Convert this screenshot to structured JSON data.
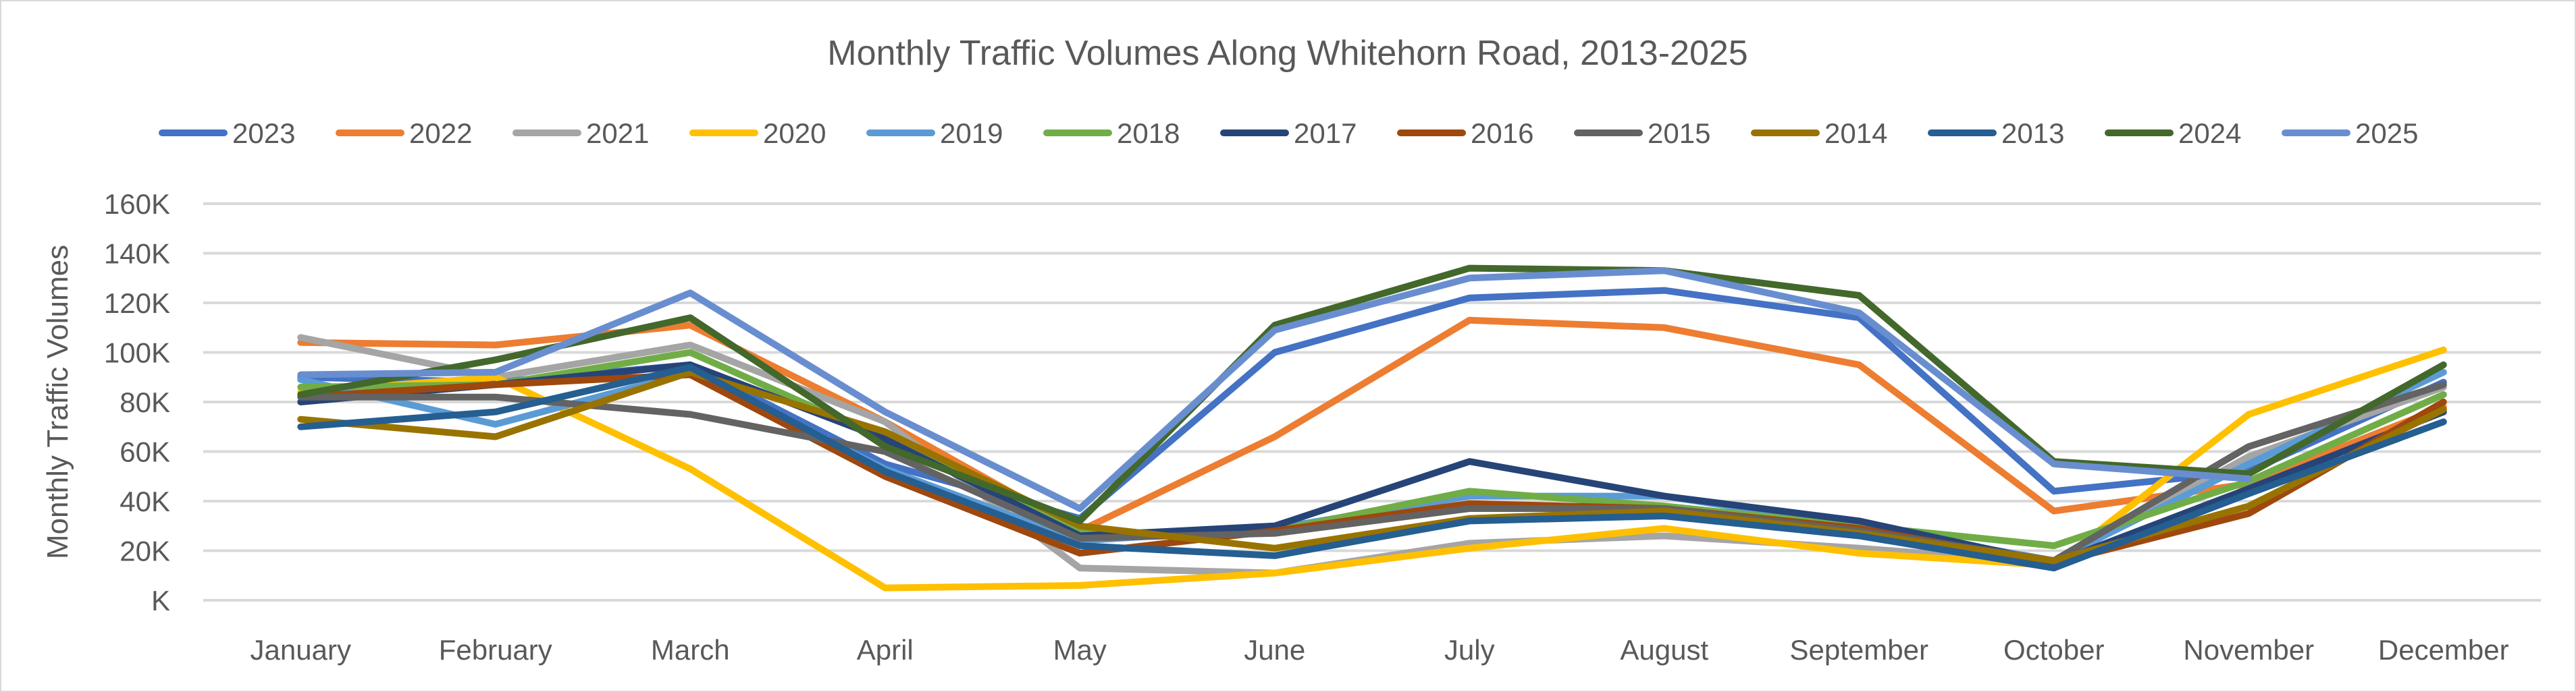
{
  "chart_data": {
    "type": "line",
    "title": "Monthly Traffic Volumes Along Whitehorn Road, 2013-2025",
    "xlabel": "",
    "ylabel": "Monthly Traffic Volumes",
    "ylim": [
      0,
      160000
    ],
    "yticks": [
      0,
      20000,
      40000,
      60000,
      80000,
      100000,
      120000,
      140000,
      160000
    ],
    "ytick_labels": [
      "K",
      "20K",
      "40K",
      "60K",
      "80K",
      "100K",
      "120K",
      "140K",
      "160K"
    ],
    "grid": true,
    "legend_position": "top",
    "categories": [
      "January",
      "February",
      "March",
      "April",
      "May",
      "June",
      "July",
      "August",
      "September",
      "October",
      "November",
      "December"
    ],
    "series": [
      {
        "name": "2023",
        "color": "#4472C4",
        "values": [
          90000,
          88000,
          95000,
          55000,
          33000,
          100000,
          122000,
          125000,
          114000,
          44000,
          52000,
          88000
        ]
      },
      {
        "name": "2022",
        "color": "#ED7D31",
        "values": [
          104000,
          103000,
          111000,
          72000,
          28000,
          66000,
          113000,
          110000,
          95000,
          36000,
          47000,
          78000
        ]
      },
      {
        "name": "2021",
        "color": "#A5A5A5",
        "values": [
          106000,
          90000,
          103000,
          72000,
          13000,
          11000,
          23000,
          26000,
          21000,
          15000,
          58000,
          86000
        ]
      },
      {
        "name": "2020",
        "color": "#FFC000",
        "values": [
          84000,
          90000,
          53000,
          5000,
          6000,
          11000,
          21000,
          29000,
          19000,
          14000,
          75000,
          101000
        ]
      },
      {
        "name": "2019",
        "color": "#5B9BD5",
        "values": [
          89000,
          71000,
          92000,
          53000,
          24000,
          29000,
          42000,
          42000,
          30000,
          16000,
          55000,
          92000
        ]
      },
      {
        "name": "2018",
        "color": "#70AD47",
        "values": [
          86000,
          87000,
          100000,
          65000,
          27000,
          28000,
          44000,
          38000,
          30000,
          22000,
          48000,
          83000
        ]
      },
      {
        "name": "2017",
        "color": "#264478",
        "values": [
          80000,
          87000,
          95000,
          65000,
          26000,
          30000,
          56000,
          42000,
          32000,
          15000,
          45000,
          76000
        ]
      },
      {
        "name": "2016",
        "color": "#9E480E",
        "values": [
          82000,
          87000,
          91000,
          50000,
          19000,
          28000,
          39000,
          37000,
          29000,
          15000,
          35000,
          80000
        ]
      },
      {
        "name": "2015",
        "color": "#636363",
        "values": [
          82000,
          82000,
          75000,
          60000,
          25000,
          27000,
          37000,
          37000,
          28000,
          16000,
          62000,
          87000
        ]
      },
      {
        "name": "2014",
        "color": "#997300",
        "values": [
          73000,
          66000,
          92000,
          68000,
          30000,
          21000,
          33000,
          36000,
          27000,
          16000,
          38000,
          77000
        ]
      },
      {
        "name": "2013",
        "color": "#255E91",
        "values": [
          70000,
          76000,
          94000,
          52000,
          22000,
          18000,
          32000,
          34000,
          26000,
          13000,
          43000,
          72000
        ]
      },
      {
        "name": "2024",
        "color": "#43682B",
        "values": [
          83000,
          97000,
          114000,
          62000,
          32000,
          111000,
          134000,
          133000,
          123000,
          56000,
          51000,
          95000
        ]
      },
      {
        "name": "2025",
        "color": "#698ED0",
        "values": [
          91000,
          92000,
          124000,
          76000,
          37000,
          109000,
          130000,
          133000,
          116000,
          55000,
          49000,
          null
        ]
      }
    ]
  }
}
